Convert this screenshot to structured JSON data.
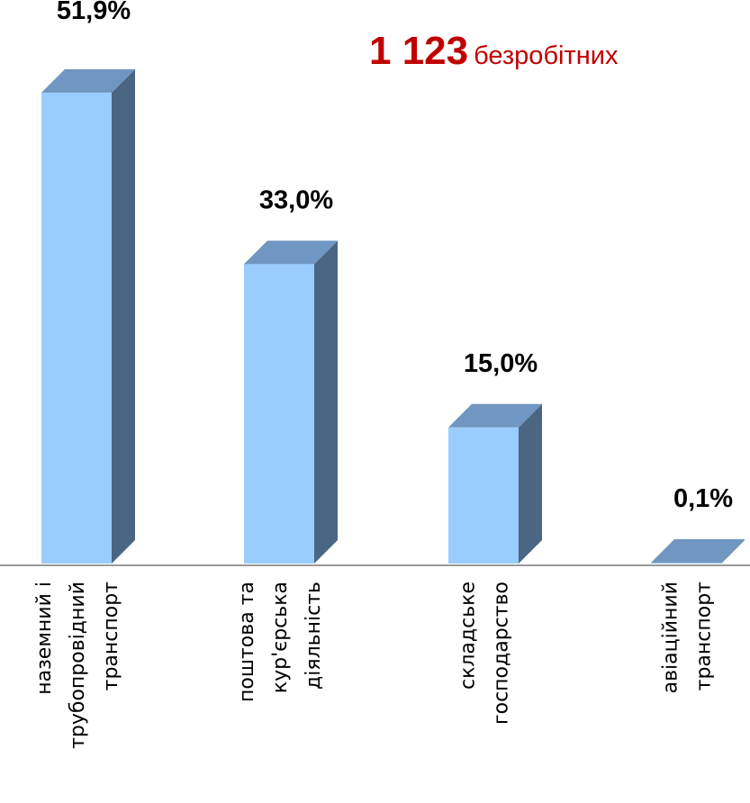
{
  "summary": {
    "count": "1 123",
    "unit": "безробітних"
  },
  "colors": {
    "bar_front": "#99ccff",
    "bar_top": "#7096c2",
    "bar_side": "#4a6683",
    "axis": "#999999",
    "headline": "#c00000"
  },
  "chart_data": {
    "type": "bar",
    "bar_style": "3d",
    "categories": [
      [
        "наземний і",
        "трубопровідний",
        "транспорт"
      ],
      [
        "поштова та",
        "кур'єрська",
        "діяльність"
      ],
      [
        "складське",
        "господарство"
      ],
      [
        "авіаційний",
        "транспорт"
      ]
    ],
    "values": [
      51.9,
      33.0,
      15.0,
      0.1
    ],
    "data_labels": [
      "51,9%",
      "33,0%",
      "15,0%",
      "0,1%"
    ],
    "ylim": [
      0,
      52
    ],
    "grid": false,
    "legend": "none"
  }
}
